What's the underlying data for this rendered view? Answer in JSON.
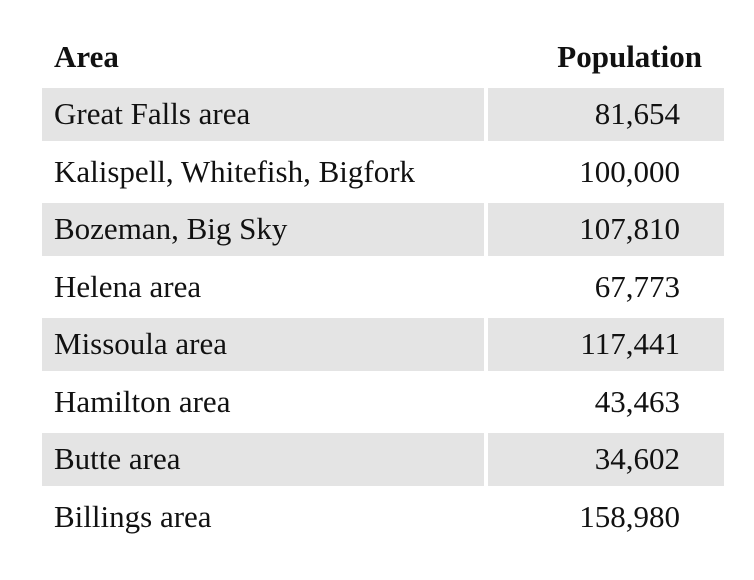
{
  "table": {
    "header": [
      "Area",
      "Population"
    ],
    "rows": [
      [
        "Great Falls area",
        "81,654"
      ],
      [
        "Kalispell, Whitefish, Bigfork",
        "100,000"
      ],
      [
        "Bozeman, Big Sky",
        "107,810"
      ],
      [
        "Helena area",
        "67,773"
      ],
      [
        "Missoula area",
        "117,441"
      ],
      [
        "Hamilton area",
        "43,463"
      ],
      [
        "Butte area",
        "34,602"
      ],
      [
        "Billings area",
        "158,980"
      ]
    ]
  }
}
